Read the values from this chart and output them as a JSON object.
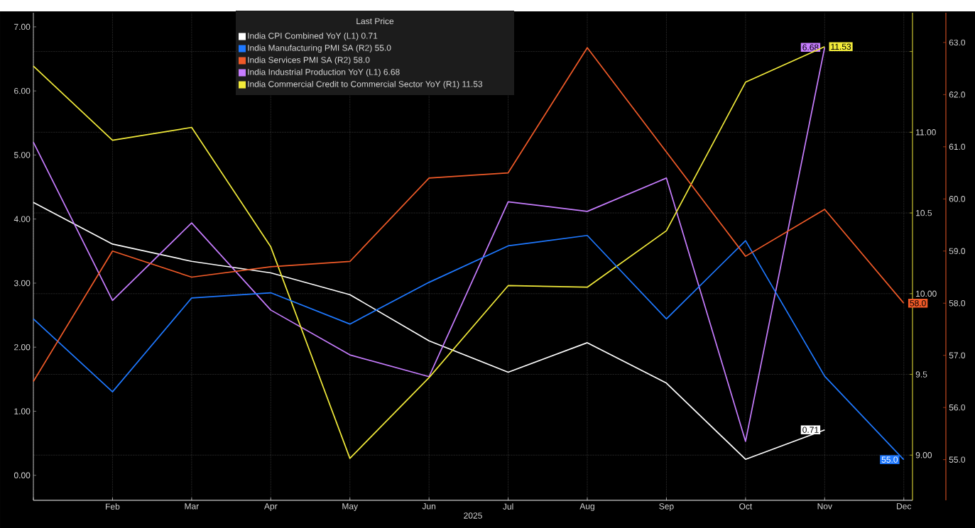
{
  "chart_data": {
    "type": "line",
    "xlabel": "2025",
    "legend_title": "Last Price",
    "legend": "top",
    "grid": true,
    "categories": [
      null,
      "Feb",
      "Mar",
      "Apr",
      "May",
      "Jun",
      "Jul",
      "Aug",
      "Sep",
      "Oct",
      "Nov",
      "Dec"
    ],
    "ylim": [
      -0.39,
      7.22
    ],
    "yticks": [
      {
        "value": 0,
        "label": "0.00"
      },
      {
        "value": 1,
        "label": "1.00"
      },
      {
        "value": 2,
        "label": "2.00"
      },
      {
        "value": 3,
        "label": "3.00"
      },
      {
        "value": 4,
        "label": "4.00"
      },
      {
        "value": 5,
        "label": "5.00"
      },
      {
        "value": 6,
        "label": "6.00"
      },
      {
        "value": 7,
        "label": "7.00"
      }
    ],
    "y2lim": [
      8.72,
      11.74
    ],
    "y2ticks": [
      {
        "value": 9,
        "label": "9.00"
      },
      9.5,
      {
        "value": 10,
        "label": "10.00"
      },
      10.5,
      {
        "value": 11,
        "label": "11.00"
      },
      {
        "value": 11.5,
        "label": null
      }
    ],
    "y3lim": [
      54.22,
      63.57
    ],
    "y3ticks": [
      {
        "value": 55,
        "label": "55.0"
      },
      {
        "value": 56,
        "label": "56.0"
      },
      {
        "value": 57,
        "label": "57.0"
      },
      {
        "value": 58,
        "label": "58.0"
      },
      {
        "value": 59,
        "label": "59.0"
      },
      {
        "value": 60,
        "label": "60.0"
      },
      {
        "value": 61,
        "label": "61.0"
      },
      {
        "value": 62,
        "label": "62.0"
      },
      {
        "value": 63,
        "label": "63.0"
      }
    ],
    "series": [
      {
        "name": "India CPI Combined YoY (L1) 0.71",
        "color": "#ffffff",
        "values": [
          4.26,
          3.61,
          3.34,
          3.16,
          2.82,
          2.1,
          1.61,
          2.07,
          1.44,
          0.25,
          0.71,
          null
        ],
        "value_labels": [
          null,
          null,
          null,
          null,
          null,
          null,
          null,
          null,
          null,
          null,
          "0.71",
          null
        ]
      },
      {
        "name": "India Manufacturing PMI SA (R2) 55.0",
        "color": "#1e78ff",
        "axis": "y3",
        "values": [
          57.7,
          56.3,
          58.1,
          58.2,
          57.6,
          58.4,
          59.1,
          59.3,
          57.7,
          59.2,
          56.6,
          55.0
        ],
        "value_labels": [
          null,
          null,
          null,
          null,
          null,
          null,
          null,
          null,
          null,
          null,
          null,
          "55.0"
        ]
      },
      {
        "name": "India Services PMI SA (R2) 58.0",
        "color": "#f05a28",
        "axis": "y3",
        "values": [
          56.5,
          59.0,
          58.5,
          58.7,
          58.8,
          60.4,
          60.5,
          62.9,
          60.9,
          58.9,
          59.8,
          58.0
        ],
        "value_labels": [
          null,
          null,
          null,
          null,
          null,
          null,
          null,
          null,
          null,
          null,
          null,
          "58.0"
        ]
      },
      {
        "name": "India Industrial Production YoY (L1) 6.68",
        "color": "#c77dff",
        "values": [
          5.2,
          2.73,
          3.94,
          2.58,
          1.88,
          1.54,
          4.27,
          4.12,
          4.64,
          0.53,
          6.68,
          null
        ],
        "value_labels": [
          null,
          null,
          null,
          null,
          null,
          null,
          null,
          null,
          null,
          null,
          "6.68",
          null
        ]
      },
      {
        "name": "India Commercial Credit to Commercial Sector YoY (R1) 11.53",
        "color": "#f2eb3a",
        "axis": "y2",
        "values": [
          11.41,
          10.95,
          11.03,
          10.29,
          8.98,
          9.48,
          10.05,
          10.04,
          10.39,
          11.31,
          11.53,
          null
        ],
        "value_labels": [
          null,
          null,
          null,
          null,
          null,
          null,
          null,
          null,
          null,
          null,
          "11.53",
          null
        ]
      }
    ]
  }
}
